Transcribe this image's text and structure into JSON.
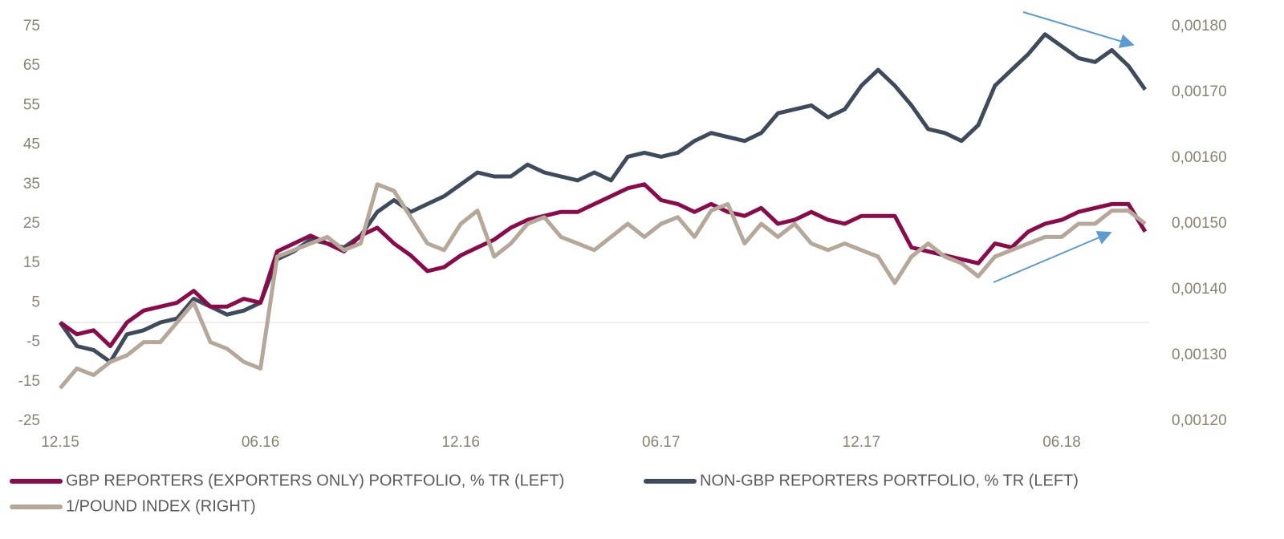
{
  "chart_data": {
    "type": "line",
    "categories": [
      "12.15",
      null,
      null,
      null,
      null,
      null,
      null,
      null,
      null,
      null,
      null,
      null,
      "06.16",
      null,
      null,
      null,
      null,
      null,
      null,
      null,
      null,
      null,
      null,
      null,
      "12.16",
      null,
      null,
      null,
      null,
      null,
      null,
      null,
      null,
      null,
      null,
      null,
      "06.17",
      null,
      null,
      null,
      null,
      null,
      null,
      null,
      null,
      null,
      null,
      null,
      "12.17",
      null,
      null,
      null,
      null,
      null,
      null,
      null,
      null,
      null,
      null,
      null,
      "06.18",
      null,
      null,
      null,
      null,
      null
    ],
    "ylim": [
      -25,
      75
    ],
    "yticks": [
      -25,
      -15,
      -5,
      5,
      15,
      25,
      35,
      45,
      55,
      65,
      75
    ],
    "y2lim": [
      0.0012,
      0.0018
    ],
    "y2ticks": [
      {
        "value": 0.0012,
        "label": "0,00120"
      },
      {
        "value": 0.0013,
        "label": "0,00130"
      },
      {
        "value": 0.0014,
        "label": "0,00140"
      },
      {
        "value": 0.0015,
        "label": "0,00150"
      },
      {
        "value": 0.0016,
        "label": "0,00160"
      },
      {
        "value": 0.0017,
        "label": "0,00170"
      },
      {
        "value": 0.0018,
        "label": "0,00180"
      }
    ],
    "series": [
      {
        "name": "GBP REPORTERS (EXPORTERS ONLY) PORTFOLIO, % TR (LEFT)",
        "color": "#8b0a4a",
        "values": [
          0,
          -3,
          -2,
          -6,
          0,
          3,
          4,
          5,
          8,
          4,
          4,
          6,
          5,
          18,
          20,
          22,
          20,
          18,
          22,
          24,
          20,
          17,
          13,
          14,
          17,
          19,
          21,
          24,
          26,
          27,
          28,
          28,
          30,
          32,
          34,
          35,
          31,
          30,
          28,
          30,
          28,
          27,
          29,
          25,
          26,
          28,
          26,
          25,
          27,
          27,
          27,
          19,
          18,
          17,
          16,
          15,
          20,
          19,
          23,
          25,
          26,
          28,
          29,
          30,
          30,
          23
        ]
      },
      {
        "name": "NON-GBP REPORTERS PORTFOLIO, % TR (LEFT)",
        "color": "#3d4b5c",
        "values": [
          0,
          -6,
          -7,
          -10,
          -3,
          -2,
          0,
          1,
          6,
          4,
          2,
          3,
          5,
          16,
          18,
          21,
          20,
          19,
          22,
          28,
          31,
          28,
          30,
          32,
          35,
          38,
          37,
          37,
          40,
          38,
          37,
          36,
          38,
          36,
          42,
          43,
          42,
          43,
          46,
          48,
          47,
          46,
          48,
          53,
          54,
          55,
          52,
          54,
          60,
          64,
          60,
          55,
          49,
          48,
          46,
          50,
          60,
          64,
          68,
          73,
          70,
          67,
          66,
          69,
          65,
          59
        ]
      },
      {
        "name": "1/POUND INDEX (RIGHT)",
        "color": "#b5a898",
        "axis": "y2",
        "values": [
          0.00125,
          0.00128,
          0.00127,
          0.00129,
          0.0013,
          0.00132,
          0.00132,
          0.00135,
          0.00138,
          0.00132,
          0.00131,
          0.00129,
          0.00128,
          0.00145,
          0.00146,
          0.00147,
          0.00148,
          0.00146,
          0.00147,
          0.00156,
          0.00155,
          0.00151,
          0.00147,
          0.00146,
          0.0015,
          0.00152,
          0.00145,
          0.00147,
          0.0015,
          0.00151,
          0.00148,
          0.00147,
          0.00146,
          0.00148,
          0.0015,
          0.00148,
          0.0015,
          0.00151,
          0.00148,
          0.00152,
          0.00153,
          0.00147,
          0.0015,
          0.00148,
          0.0015,
          0.00147,
          0.00146,
          0.00147,
          0.00146,
          0.00145,
          0.00141,
          0.00145,
          0.00147,
          0.00145,
          0.00144,
          0.00142,
          0.00145,
          0.00146,
          0.00147,
          0.00148,
          0.00148,
          0.0015,
          0.0015,
          0.00152,
          0.00152,
          0.0015
        ]
      }
    ]
  }
}
